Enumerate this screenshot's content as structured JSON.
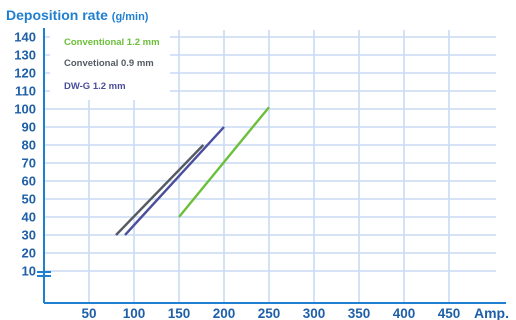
{
  "chart_data": {
    "type": "line",
    "title": "Deposition rate",
    "title_unit": "(g/min)",
    "xlabel": "Amp.",
    "x_ticks": [
      50,
      100,
      150,
      200,
      250,
      300,
      350,
      400,
      450
    ],
    "y_ticks": [
      10,
      20,
      30,
      40,
      50,
      60,
      70,
      80,
      90,
      100,
      110,
      120,
      130,
      140
    ],
    "xlim": [
      0,
      500
    ],
    "ylim": [
      0,
      145
    ],
    "axis_break": "y",
    "grid": true,
    "legend_position": "top-left",
    "series": [
      {
        "name": "Conventional 1.2 mm",
        "color": "#6cbf3a",
        "x": [
          150,
          250
        ],
        "y": [
          40,
          101
        ]
      },
      {
        "name": "Convetional 0.9 mm",
        "color": "#555a63",
        "x": [
          80,
          177
        ],
        "y": [
          30,
          80
        ]
      },
      {
        "name": "DW-G 1.2 mm",
        "color": "#4b4e9c",
        "x": [
          90,
          200
        ],
        "y": [
          30,
          90
        ]
      }
    ]
  },
  "colors": {
    "axis": "#1f7fd0",
    "grid": "#c9daf4",
    "tick_text": "#1f5fa8",
    "title_text": "#1f7fd0"
  }
}
